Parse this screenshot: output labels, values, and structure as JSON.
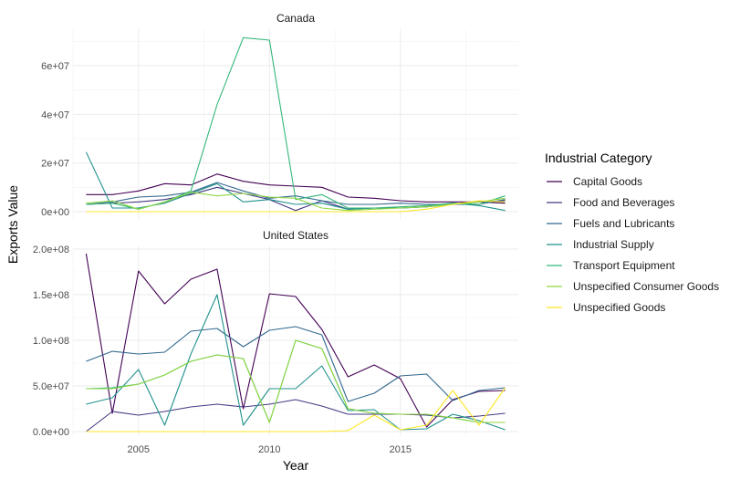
{
  "chart_data": {
    "type": "line",
    "xlabel": "Year",
    "ylabel": "Exports Value",
    "x_ticks": [
      2005,
      2010,
      2015
    ],
    "xlim": [
      2002.5,
      2019.5
    ],
    "legend": {
      "title": "Industrial Category",
      "placement": "right",
      "items": [
        {
          "name": "Capital Goods",
          "color": "#440154"
        },
        {
          "name": "Food and Beverages",
          "color": "#443983"
        },
        {
          "name": "Fuels and Lubricants",
          "color": "#31688e"
        },
        {
          "name": "Industrial Supply",
          "color": "#21918c"
        },
        {
          "name": "Transport Equipment",
          "color": "#35b779"
        },
        {
          "name": "Unspecified Consumer Goods",
          "color": "#90d743"
        },
        {
          "name": "Unspecified Goods",
          "color": "#fde725"
        }
      ]
    },
    "panels": [
      {
        "strip": "Canada",
        "ylim": [
          -3000000,
          75000000
        ],
        "y_ticks": [
          {
            "value": 0,
            "label": "0e+00"
          },
          {
            "value": 20000000,
            "label": "2e+07"
          },
          {
            "value": 40000000,
            "label": "4e+07"
          },
          {
            "value": 60000000,
            "label": "6e+07"
          }
        ],
        "x": [
          2003,
          2004,
          2005,
          2006,
          2007,
          2008,
          2009,
          2010,
          2011,
          2012,
          2013,
          2014,
          2015,
          2016,
          2017,
          2018,
          2019
        ],
        "series": [
          {
            "name": "Capital Goods",
            "values": [
              7000000,
              7000000,
              8500000,
              11500000,
              11000000,
              15500000,
              12500000,
              11000000,
              10500000,
              10000000,
              6000000,
              5500000,
              4500000,
              4000000,
              4000000,
              4000000,
              3500000
            ]
          },
          {
            "name": "Food and Beverages",
            "values": [
              3000000,
              3500000,
              4000000,
              5000000,
              7000000,
              10000000,
              7500000,
              5000000,
              500000,
              4500000,
              1000000,
              1500000,
              1500000,
              2000000,
              3000000,
              4000000,
              4500000
            ]
          },
          {
            "name": "Fuels and Lubricants",
            "values": [
              3000000,
              4000000,
              6000000,
              6500000,
              8000000,
              12000000,
              8500000,
              5500000,
              6500000,
              4500000,
              3000000,
              3000000,
              3500000,
              3000000,
              3000000,
              3000000,
              5000000
            ]
          },
          {
            "name": "Industrial Supply",
            "values": [
              24500000,
              1500000,
              1500000,
              3500000,
              7500000,
              11500000,
              4000000,
              5000000,
              3000000,
              3500000,
              1000000,
              1500000,
              1500000,
              2000000,
              3500000,
              2500000,
              500000
            ]
          },
          {
            "name": "Transport Equipment",
            "values": [
              3000000,
              3500000,
              1000000,
              4000000,
              8500000,
              44000000,
              71500000,
              70500000,
              5000000,
              7000000,
              1500000,
              1500000,
              2000000,
              2500000,
              3500000,
              3000000,
              6500000
            ]
          },
          {
            "name": "Unspecified Consumer Goods",
            "values": [
              3500000,
              4500000,
              1000000,
              4000000,
              8000000,
              6500000,
              7500000,
              6000000,
              5500000,
              1500000,
              500000,
              1000000,
              1500000,
              2000000,
              3000000,
              4000000,
              5500000
            ]
          },
          {
            "name": "Unspecified Goods",
            "values": [
              0,
              0,
              0,
              0,
              0,
              0,
              0,
              0,
              0,
              0,
              0,
              0,
              0,
              1000000,
              3000000,
              4500000,
              4000000
            ]
          }
        ]
      },
      {
        "strip": "United States",
        "ylim": [
          -5000000,
          203000000
        ],
        "y_ticks": [
          {
            "value": 0,
            "label": "0.0e+00"
          },
          {
            "value": 50000000,
            "label": "5.0e+07"
          },
          {
            "value": 100000000,
            "label": "1.0e+08"
          },
          {
            "value": 150000000,
            "label": "1.5e+08"
          },
          {
            "value": 200000000,
            "label": "2.0e+08"
          }
        ],
        "x": [
          2003,
          2004,
          2005,
          2006,
          2007,
          2008,
          2009,
          2010,
          2011,
          2012,
          2013,
          2014,
          2015,
          2016,
          2017,
          2018,
          2019
        ],
        "series": [
          {
            "name": "Capital Goods",
            "values": [
              195000000,
              20000000,
              176000000,
              140000000,
              167000000,
              178000000,
              25000000,
              151000000,
              148000000,
              112000000,
              60000000,
              73000000,
              58000000,
              5000000,
              35000000,
              44000000,
              45000000
            ]
          },
          {
            "name": "Food and Beverages",
            "values": [
              0,
              22000000,
              18000000,
              22000000,
              27000000,
              30000000,
              27000000,
              30000000,
              35000000,
              28000000,
              19000000,
              19000000,
              19000000,
              18000000,
              15000000,
              17000000,
              20000000
            ]
          },
          {
            "name": "Fuels and Lubricants",
            "values": [
              77000000,
              88000000,
              85000000,
              87000000,
              110000000,
              113000000,
              93000000,
              111000000,
              115000000,
              106000000,
              33000000,
              42000000,
              61000000,
              63000000,
              34000000,
              45000000,
              48000000
            ]
          },
          {
            "name": "Industrial Supply",
            "values": [
              30000000,
              37000000,
              68000000,
              7000000,
              85000000,
              150000000,
              7000000,
              47000000,
              47000000,
              72000000,
              23000000,
              24000000,
              2000000,
              3000000,
              19000000,
              12000000,
              2000000
            ]
          },
          {
            "name": "Transport Equipment",
            "values": [
              47000000,
              48000000,
              52000000,
              62000000,
              77000000,
              84000000,
              80000000,
              10000000,
              100000000,
              91000000,
              25000000,
              20000000,
              19000000,
              19000000,
              15000000,
              10000000,
              10000000
            ]
          },
          {
            "name": "Unspecified Consumer Goods",
            "values": [
              47000000,
              47000000,
              52000000,
              62000000,
              77000000,
              84000000,
              80000000,
              10000000,
              100000000,
              91000000,
              25000000,
              20000000,
              19000000,
              19000000,
              15000000,
              10000000,
              10000000
            ]
          },
          {
            "name": "Unspecified Goods",
            "values": [
              0,
              0,
              0,
              0,
              0,
              0,
              0,
              0,
              0,
              0,
              1000000,
              18000000,
              2000000,
              7000000,
              45000000,
              7000000,
              48000000
            ]
          }
        ]
      }
    ]
  }
}
